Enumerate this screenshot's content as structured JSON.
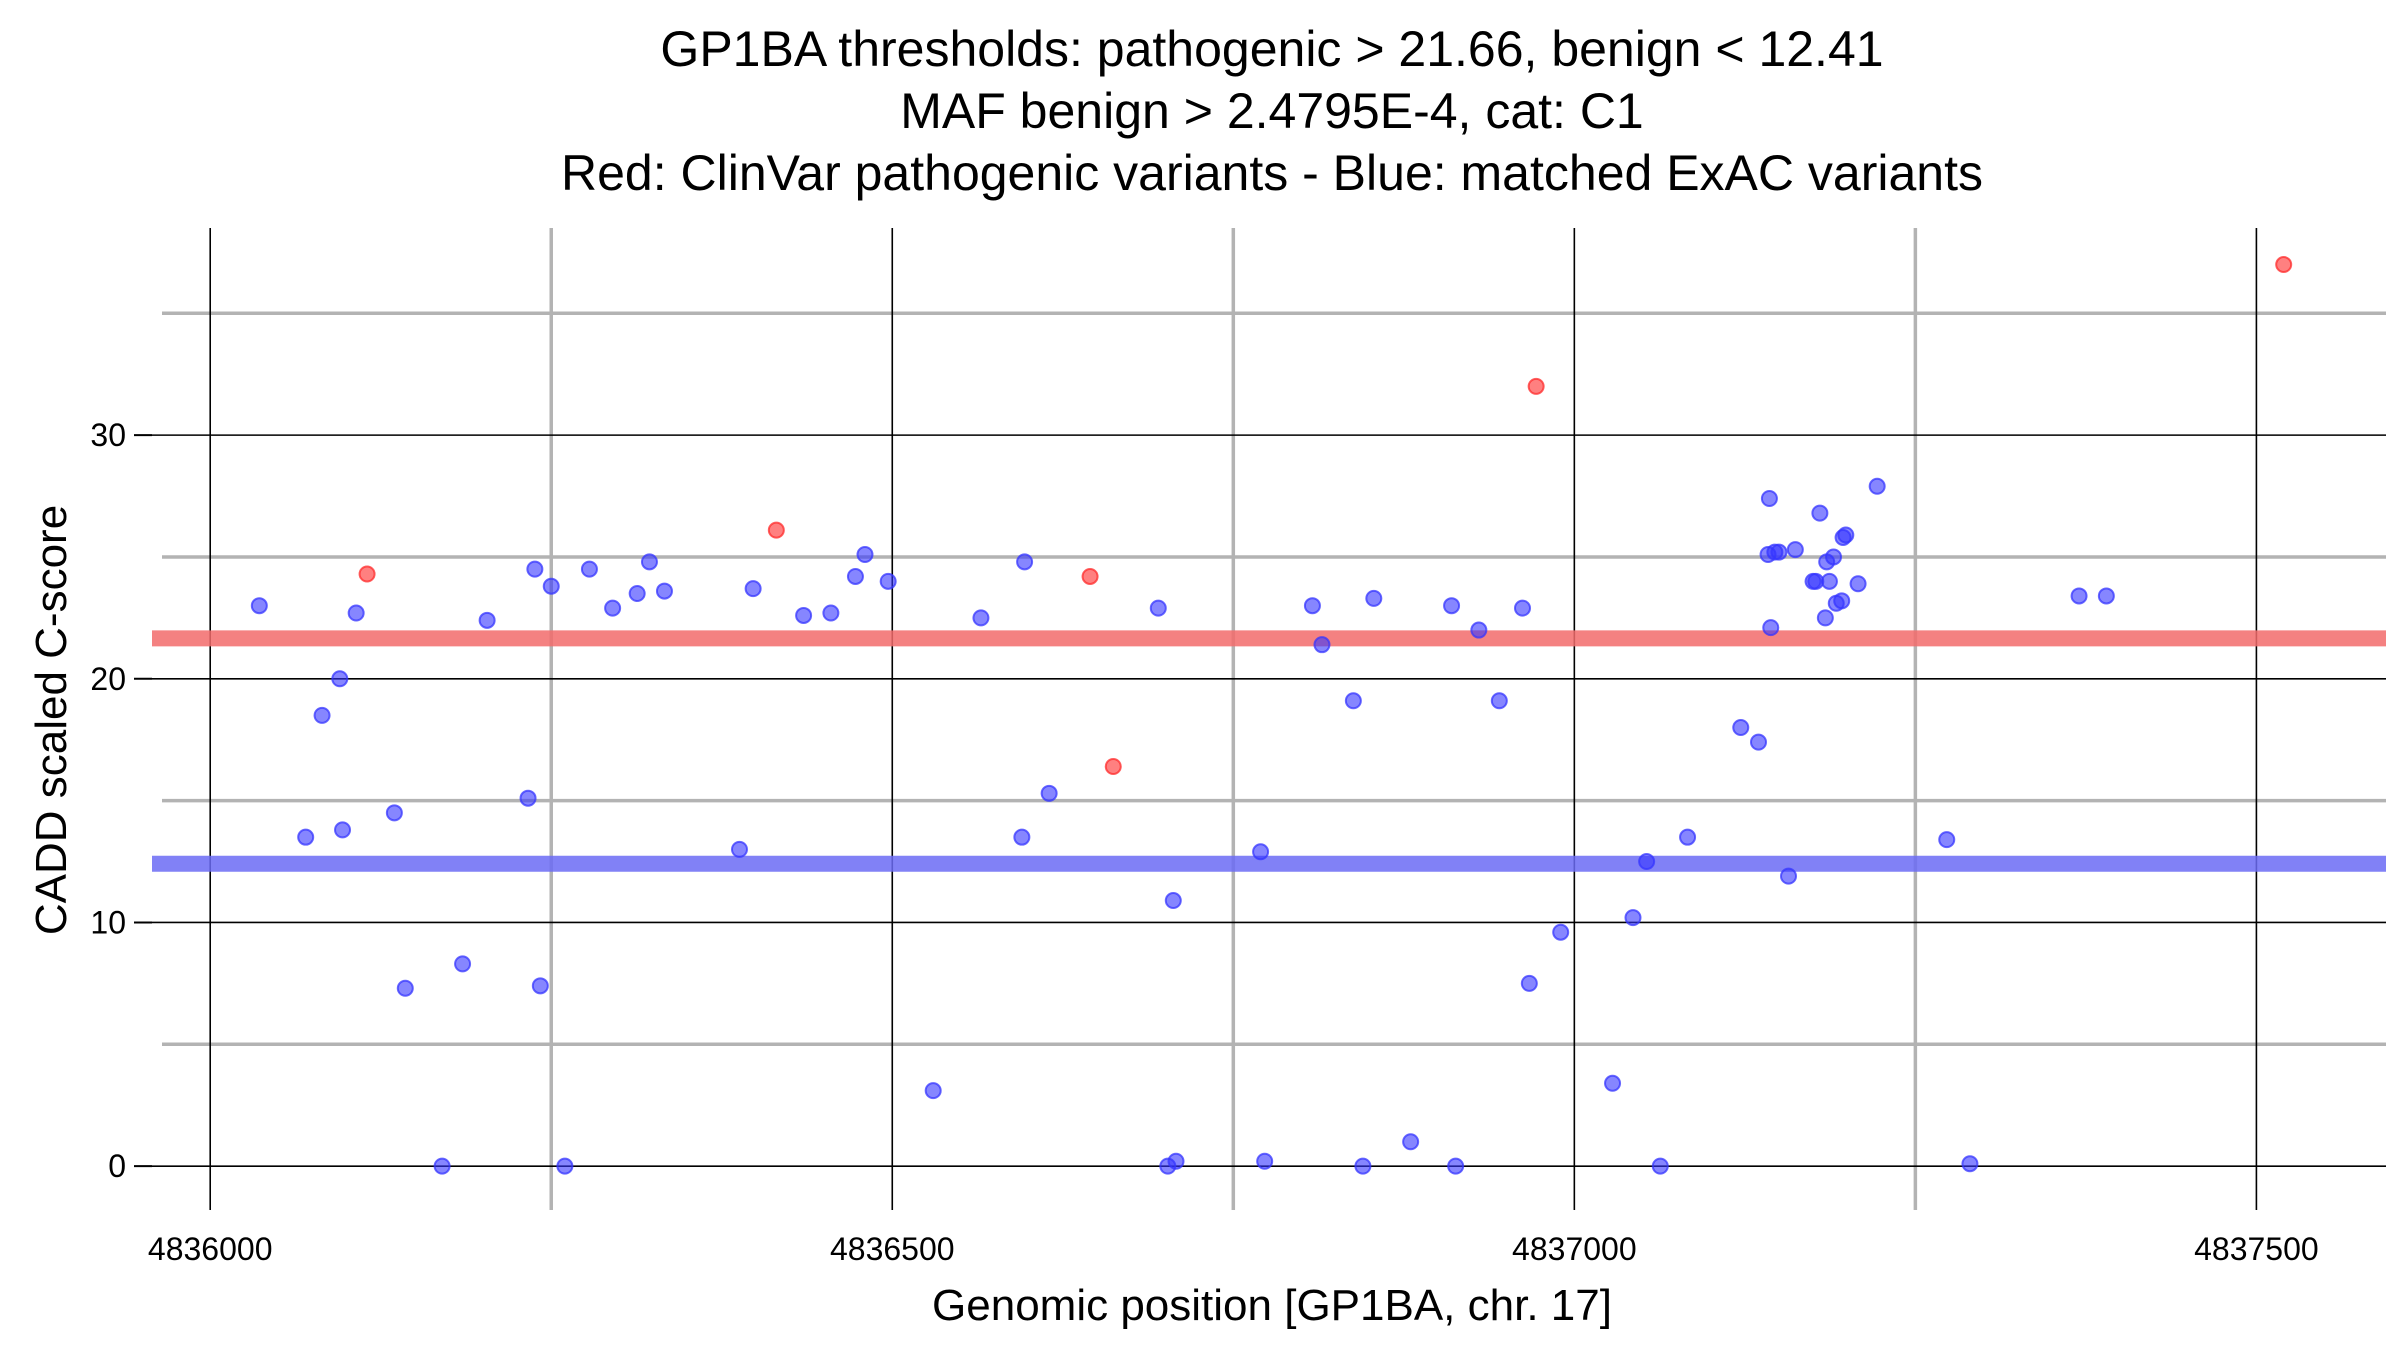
{
  "chart_data": {
    "type": "scatter",
    "title_lines": [
      "GP1BA thresholds: pathogenic > 21.66, benign < 12.41",
      "MAF benign > 2.4795E-4, cat: C1",
      "Red: ClinVar pathogenic variants - Blue: matched ExAC variants"
    ],
    "xlabel": "Genomic position [GP1BA, chr. 17]",
    "ylabel": "CADD scaled C-score",
    "xlim": [
      4835950,
      4837595
    ],
    "ylim": [
      -1.8,
      38.5
    ],
    "xticks": [
      4836000,
      4836500,
      4837000,
      4837500
    ],
    "xtick_labels": [
      "4836000",
      "4836500",
      "4837000",
      "4837500"
    ],
    "x_minor_grid": [
      4836250,
      4836750,
      4837250
    ],
    "yticks": [
      0,
      10,
      20,
      30
    ],
    "ytick_labels": [
      "0",
      "10",
      "20",
      "30"
    ],
    "y_minor_grid": [
      5,
      15,
      25,
      35
    ],
    "grid": true,
    "thresholds": [
      {
        "name": "pathogenic",
        "value": 21.66,
        "color": "#f26b6b"
      },
      {
        "name": "benign",
        "value": 12.41,
        "color": "#6b6bf5"
      }
    ],
    "series": [
      {
        "color": "#ff2b2b",
        "points": [
          [
            4836115,
            24.3
          ],
          [
            4836415,
            26.1
          ],
          [
            4836645,
            24.2
          ],
          [
            4836662,
            16.4
          ],
          [
            4836972,
            32.0
          ],
          [
            4837520,
            37.0
          ]
        ]
      },
      {
        "color": "#3535ff",
        "points": [
          [
            4836036,
            23.0
          ],
          [
            4836070,
            13.5
          ],
          [
            4836082,
            18.5
          ],
          [
            4836095,
            20.0
          ],
          [
            4836097,
            13.8
          ],
          [
            4836107,
            22.7
          ],
          [
            4836135,
            14.5
          ],
          [
            4836143,
            7.3
          ],
          [
            4836170,
            0.0
          ],
          [
            4836185,
            8.3
          ],
          [
            4836203,
            22.4
          ],
          [
            4836233,
            15.1
          ],
          [
            4836238,
            24.5
          ],
          [
            4836242,
            7.4
          ],
          [
            4836250,
            23.8
          ],
          [
            4836260,
            0.0
          ],
          [
            4836278,
            24.5
          ],
          [
            4836295,
            22.9
          ],
          [
            4836313,
            23.5
          ],
          [
            4836322,
            24.8
          ],
          [
            4836333,
            23.6
          ],
          [
            4836388,
            13.0
          ],
          [
            4836398,
            23.7
          ],
          [
            4836435,
            22.6
          ],
          [
            4836455,
            22.7
          ],
          [
            4836473,
            24.2
          ],
          [
            4836480,
            25.1
          ],
          [
            4836497,
            24.0
          ],
          [
            4836530,
            3.1
          ],
          [
            4836565,
            22.5
          ],
          [
            4836595,
            13.5
          ],
          [
            4836597,
            24.8
          ],
          [
            4836615,
            15.3
          ],
          [
            4836695,
            22.9
          ],
          [
            4836702,
            0.0
          ],
          [
            4836706,
            10.9
          ],
          [
            4836708,
            0.2
          ],
          [
            4836770,
            12.9
          ],
          [
            4836773,
            0.2
          ],
          [
            4836808,
            23.0
          ],
          [
            4836815,
            21.4
          ],
          [
            4836838,
            19.1
          ],
          [
            4836845,
            0.0
          ],
          [
            4836853,
            23.3
          ],
          [
            4836880,
            1.0
          ],
          [
            4836910,
            23.0
          ],
          [
            4836913,
            0.0
          ],
          [
            4836930,
            22.0
          ],
          [
            4836945,
            19.1
          ],
          [
            4836962,
            22.9
          ],
          [
            4836967,
            7.5
          ],
          [
            4836990,
            9.6
          ],
          [
            4837028,
            3.4
          ],
          [
            4837043,
            10.2
          ],
          [
            4837053,
            12.5
          ],
          [
            4837063,
            0.0
          ],
          [
            4837083,
            13.5
          ],
          [
            4837122,
            18.0
          ],
          [
            4837135,
            17.4
          ],
          [
            4837142,
            25.1
          ],
          [
            4837143,
            27.4
          ],
          [
            4837144,
            22.1
          ],
          [
            4837147,
            25.2
          ],
          [
            4837150,
            25.2
          ],
          [
            4837157,
            11.9
          ],
          [
            4837162,
            25.3
          ],
          [
            4837175,
            24.0
          ],
          [
            4837177,
            24.0
          ],
          [
            4837180,
            26.8
          ],
          [
            4837184,
            22.5
          ],
          [
            4837185,
            24.8
          ],
          [
            4837187,
            24.0
          ],
          [
            4837190,
            25.0
          ],
          [
            4837192,
            23.1
          ],
          [
            4837196,
            23.2
          ],
          [
            4837197,
            25.8
          ],
          [
            4837199,
            25.9
          ],
          [
            4837208,
            23.9
          ],
          [
            4837222,
            27.9
          ],
          [
            4837273,
            13.4
          ],
          [
            4837290,
            0.1
          ],
          [
            4837370,
            23.4
          ],
          [
            4837390,
            23.4
          ]
        ]
      }
    ]
  }
}
